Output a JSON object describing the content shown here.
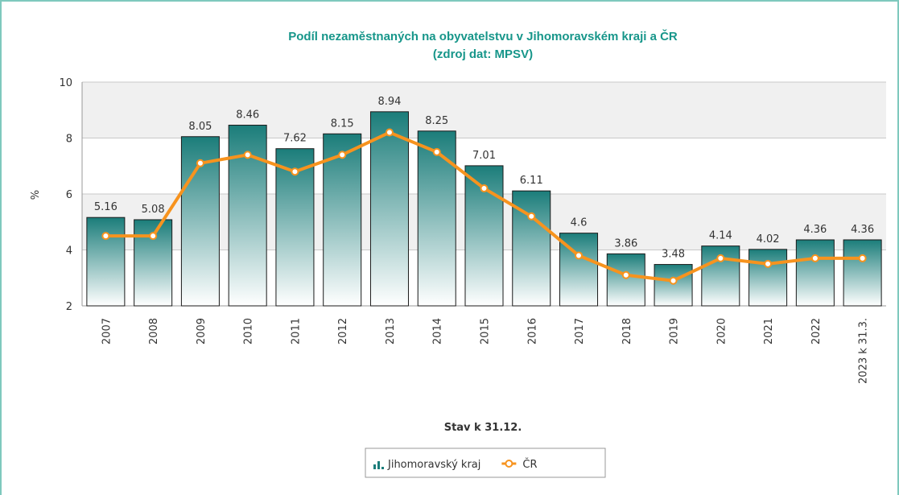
{
  "chart_data": {
    "type": "bar_line",
    "title": "Podíl nezaměstnaných na obyvatelstvu v Jihomoravském kraji a ČR",
    "subtitle": "(zdroj dat: MPSV)",
    "y_label": "%",
    "x_label": "Stav k 31.12.",
    "categories": [
      "2007",
      "2008",
      "2009",
      "2010",
      "2011",
      "2012",
      "2013",
      "2014",
      "2015",
      "2016",
      "2017",
      "2018",
      "2019",
      "2020",
      "2021",
      "2022",
      "2023 k 31.3."
    ],
    "series": [
      {
        "name": "Jihomoravský kraj",
        "type": "bar",
        "color": "#1b7d7a",
        "values": [
          5.16,
          5.08,
          8.05,
          8.46,
          7.62,
          8.15,
          8.94,
          8.25,
          7.01,
          6.11,
          4.6,
          3.86,
          3.48,
          4.14,
          4.02,
          4.36,
          4.36
        ]
      },
      {
        "name": "ČR",
        "type": "line",
        "color": "#f7931e",
        "values": [
          4.5,
          4.5,
          7.1,
          7.4,
          6.8,
          7.4,
          8.2,
          7.5,
          6.2,
          5.2,
          3.8,
          3.1,
          2.9,
          3.7,
          3.5,
          3.7,
          3.7
        ]
      }
    ],
    "ylim": [
      2,
      10
    ],
    "yticks": [
      2,
      4,
      6,
      8,
      10
    ],
    "grid": true,
    "legend": "bottom"
  }
}
